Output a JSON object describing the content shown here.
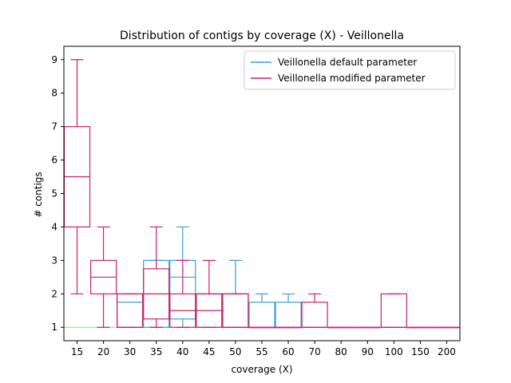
{
  "chart_data": {
    "type": "box",
    "title": "Distribution of contigs by coverage (X) - Veillonella",
    "xlabel": "coverage (X)",
    "ylabel": "# contigs",
    "categories": [
      "15",
      "20",
      "30",
      "35",
      "40",
      "45",
      "50",
      "55",
      "60",
      "70",
      "80",
      "90",
      "100",
      "150",
      "200"
    ],
    "ylim": [
      0.6,
      9.4
    ],
    "yticks": [
      1,
      2,
      3,
      4,
      5,
      6,
      7,
      8,
      9
    ],
    "reference_line": {
      "y": 1,
      "color": "#90d890"
    },
    "legend": {
      "position": "top-right"
    },
    "series": [
      {
        "name": "Veillonella default parameter",
        "color": "#3a9fd0",
        "boxes": [
          null,
          null,
          {
            "category": "30",
            "min": 1,
            "q1": 1,
            "median": 1.75,
            "q3": 2,
            "max": 2
          },
          {
            "category": "35",
            "min": 1,
            "q1": 1,
            "median": 2,
            "q3": 3,
            "max": 3
          },
          {
            "category": "40",
            "min": 1,
            "q1": 1.25,
            "median": 2.5,
            "q3": 3,
            "max": 4
          },
          {
            "category": "45",
            "min": 1,
            "q1": 1,
            "median": 2,
            "q3": 2,
            "max": 2
          },
          {
            "category": "50",
            "min": 1,
            "q1": 1,
            "median": 2,
            "q3": 2,
            "max": 3
          },
          {
            "category": "55",
            "min": 1,
            "q1": 1,
            "median": 1,
            "q3": 1.75,
            "max": 2
          },
          {
            "category": "60",
            "min": 1,
            "q1": 1,
            "median": 1,
            "q3": 1.75,
            "max": 2
          },
          null,
          null,
          null,
          null,
          null,
          null
        ]
      },
      {
        "name": "Veillonella modified parameter",
        "color": "#cc1f6e",
        "boxes": [
          {
            "category": "15",
            "min": 2,
            "q1": 4,
            "median": 5.5,
            "q3": 7,
            "max": 9
          },
          {
            "category": "20",
            "min": 1,
            "q1": 2,
            "median": 2.5,
            "q3": 3,
            "max": 4
          },
          {
            "category": "30",
            "min": 1,
            "q1": 1,
            "median": 1,
            "q3": 2,
            "max": 2
          },
          {
            "category": "35",
            "min": 1,
            "q1": 1.25,
            "median": 2,
            "q3": 2.75,
            "max": 4
          },
          {
            "category": "40",
            "min": 1,
            "q1": 1,
            "median": 1.5,
            "q3": 2,
            "max": 3
          },
          {
            "category": "45",
            "min": 1,
            "q1": 1,
            "median": 1.5,
            "q3": 2,
            "max": 3
          },
          {
            "category": "50",
            "min": 1,
            "q1": 1,
            "median": 1,
            "q3": 2,
            "max": 2
          },
          {
            "category": "55",
            "min": 1,
            "q1": 1,
            "median": 1,
            "q3": 1,
            "max": 1
          },
          {
            "category": "60",
            "min": 1,
            "q1": 1,
            "median": 1,
            "q3": 1,
            "max": 1
          },
          {
            "category": "70",
            "min": 1,
            "q1": 1,
            "median": 1,
            "q3": 1.75,
            "max": 2
          },
          {
            "category": "80",
            "min": 1,
            "q1": 1,
            "median": 1,
            "q3": 1,
            "max": 1
          },
          {
            "category": "90",
            "min": 1,
            "q1": 1,
            "median": 1,
            "q3": 1,
            "max": 1
          },
          {
            "category": "100",
            "min": 1,
            "q1": 1,
            "median": 1,
            "q3": 2,
            "max": 2
          },
          {
            "category": "150",
            "min": 1,
            "q1": 1,
            "median": 1,
            "q3": 1,
            "max": 1
          },
          {
            "category": "200",
            "min": 1,
            "q1": 1,
            "median": 1,
            "q3": 1,
            "max": 1
          }
        ]
      }
    ]
  }
}
